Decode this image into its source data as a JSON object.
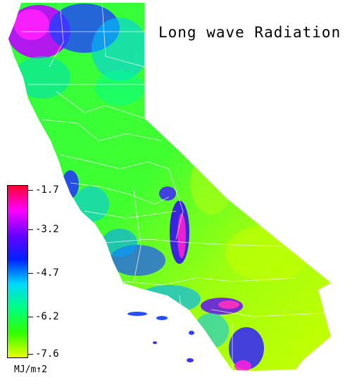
{
  "title": "Long wave Radiation",
  "legend": {
    "unit": "MJ/m↑2",
    "ticks": [
      "-1.7",
      "-3.2",
      "-4.7",
      "-6.2",
      "-7.6"
    ],
    "colors": [
      "#ff0030",
      "#ff00ff",
      "#6a00ff",
      "#0020ff",
      "#00d8ff",
      "#00ff80",
      "#30ff00",
      "#e8ff00"
    ]
  }
}
